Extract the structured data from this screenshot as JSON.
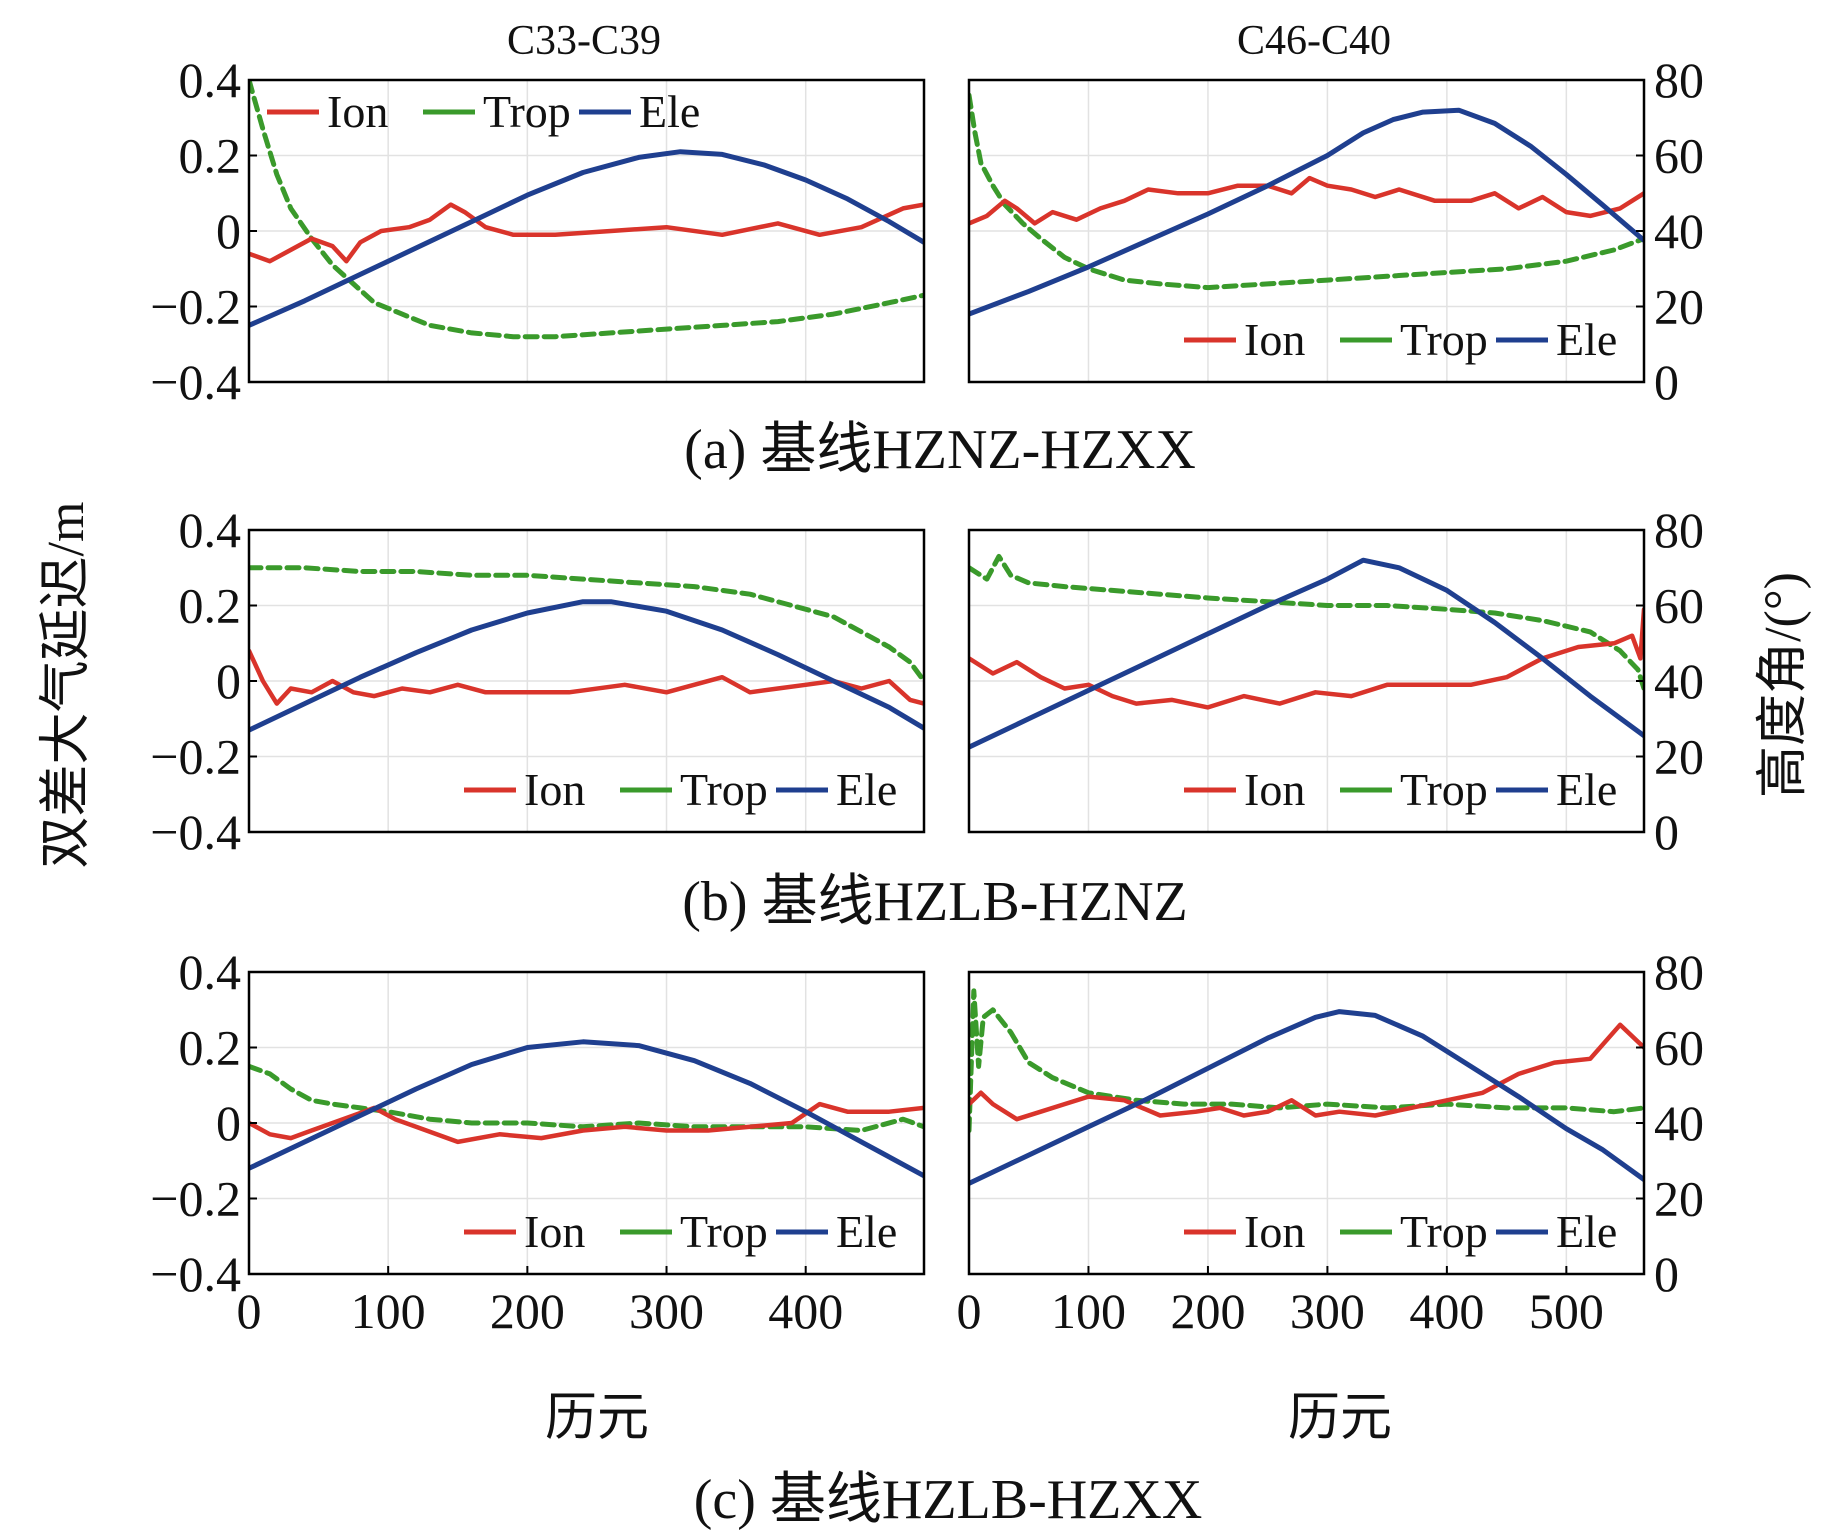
{
  "figure": {
    "column_titles": [
      "C33-C39",
      "C46-C40"
    ],
    "left_axis_label": "双差大气延迟/m",
    "right_axis_label": "高度角/(°)",
    "x_axis_label": "历元",
    "left_ticks": [
      "0.4",
      "0.2",
      "0",
      "−0.2",
      "−0.4"
    ],
    "right_ticks": [
      "80",
      "60",
      "40",
      "20",
      "0"
    ],
    "x_ticks_left": [
      "0",
      "100",
      "200",
      "300",
      "400"
    ],
    "x_ticks_right": [
      "0",
      "100",
      "200",
      "300",
      "400",
      "500"
    ],
    "captions": [
      "(a) 基线HZNZ-HZXX",
      "(b) 基线HZLB-HZNZ",
      "(c) 基线HZLB-HZXX"
    ],
    "legend": {
      "ion": "Ion",
      "trop": "Trop",
      "ele": "Ele"
    }
  },
  "colors": {
    "ion": "#d9342b",
    "trop": "#3a9a2b",
    "ele": "#1f3f8f"
  },
  "chart_data": [
    {
      "type": "line",
      "panel": "a-left",
      "title": "C33-C39",
      "caption": "(a) 基线HZNZ-HZXX",
      "xlabel": "历元",
      "ylabel": "双差大气延迟/m",
      "y2label": "高度角/(°)",
      "xlim": [
        0,
        485
      ],
      "ylim": [
        -0.4,
        0.4
      ],
      "y2lim": [
        0,
        80
      ],
      "legend_position": "top-left",
      "series": [
        {
          "name": "Ion",
          "axis": "left",
          "x": [
            0,
            15,
            30,
            45,
            60,
            70,
            80,
            95,
            115,
            130,
            145,
            155,
            170,
            190,
            220,
            260,
            300,
            340,
            380,
            410,
            440,
            470,
            485
          ],
          "y": [
            -0.06,
            -0.08,
            -0.05,
            -0.02,
            -0.04,
            -0.08,
            -0.03,
            0,
            0.01,
            0.03,
            0.07,
            0.05,
            0.01,
            -0.01,
            -0.01,
            0,
            0.01,
            -0.01,
            0.02,
            -0.01,
            0.01,
            0.06,
            0.07
          ]
        },
        {
          "name": "Trop",
          "axis": "left",
          "x": [
            0,
            10,
            20,
            30,
            45,
            60,
            75,
            90,
            110,
            130,
            160,
            190,
            220,
            260,
            300,
            340,
            380,
            420,
            460,
            485
          ],
          "y": [
            0.4,
            0.27,
            0.15,
            0.06,
            -0.02,
            -0.09,
            -0.14,
            -0.19,
            -0.22,
            -0.25,
            -0.27,
            -0.28,
            -0.28,
            -0.27,
            -0.26,
            -0.25,
            -0.24,
            -0.22,
            -0.19,
            -0.17
          ]
        },
        {
          "name": "Ele",
          "axis": "right",
          "x": [
            0,
            40,
            80,
            120,
            160,
            200,
            240,
            280,
            310,
            340,
            370,
            400,
            430,
            460,
            485
          ],
          "y": [
            15,
            21.5,
            28.5,
            35.5,
            42.5,
            49.5,
            55.5,
            59.5,
            61,
            60.3,
            57.5,
            53.5,
            48.5,
            42.5,
            37
          ]
        }
      ]
    },
    {
      "type": "line",
      "panel": "a-right",
      "title": "C46-C40",
      "caption": "(a) 基线HZNZ-HZXX",
      "xlabel": "历元",
      "ylabel": "双差大气延迟/m",
      "y2label": "高度角/(°)",
      "xlim": [
        0,
        565
      ],
      "ylim": [
        -0.4,
        0.4
      ],
      "y2lim": [
        0,
        80
      ],
      "legend_position": "bottom-right",
      "series": [
        {
          "name": "Ion",
          "axis": "left",
          "x": [
            0,
            15,
            30,
            40,
            55,
            70,
            90,
            110,
            130,
            150,
            175,
            200,
            225,
            250,
            270,
            285,
            300,
            320,
            340,
            360,
            390,
            420,
            440,
            460,
            480,
            500,
            520,
            545,
            565
          ],
          "y": [
            0.02,
            0.04,
            0.08,
            0.06,
            0.02,
            0.05,
            0.03,
            0.06,
            0.08,
            0.11,
            0.1,
            0.1,
            0.12,
            0.12,
            0.1,
            0.14,
            0.12,
            0.11,
            0.09,
            0.11,
            0.08,
            0.08,
            0.1,
            0.06,
            0.09,
            0.05,
            0.04,
            0.06,
            0.1
          ]
        },
        {
          "name": "Trop",
          "axis": "left",
          "x": [
            0,
            5,
            10,
            20,
            30,
            45,
            60,
            80,
            100,
            130,
            160,
            200,
            250,
            300,
            350,
            400,
            450,
            500,
            540,
            565
          ],
          "y": [
            0.36,
            0.26,
            0.18,
            0.12,
            0.07,
            0.02,
            -0.02,
            -0.07,
            -0.1,
            -0.13,
            -0.14,
            -0.15,
            -0.14,
            -0.13,
            -0.12,
            -0.11,
            -0.1,
            -0.08,
            -0.05,
            -0.02
          ]
        },
        {
          "name": "Ele",
          "axis": "right",
          "x": [
            0,
            50,
            100,
            150,
            200,
            250,
            300,
            330,
            355,
            380,
            410,
            440,
            470,
            500,
            530,
            565
          ],
          "y": [
            18,
            24,
            30.5,
            37.5,
            44.5,
            52,
            60,
            66,
            69.5,
            71.5,
            72,
            68.5,
            62.5,
            55,
            47,
            37.5
          ]
        }
      ]
    },
    {
      "type": "line",
      "panel": "b-left",
      "title": "C33-C39",
      "caption": "(b) 基线HZLB-HZNZ",
      "xlabel": "历元",
      "ylabel": "双差大气延迟/m",
      "y2label": "高度角/(°)",
      "xlim": [
        0,
        485
      ],
      "ylim": [
        -0.4,
        0.4
      ],
      "y2lim": [
        0,
        80
      ],
      "legend_position": "bottom-right",
      "series": [
        {
          "name": "Ion",
          "axis": "left",
          "x": [
            0,
            10,
            20,
            30,
            45,
            60,
            75,
            90,
            110,
            130,
            150,
            170,
            200,
            230,
            270,
            300,
            340,
            360,
            380,
            400,
            420,
            440,
            460,
            475,
            485
          ],
          "y": [
            0.08,
            0,
            -0.06,
            -0.02,
            -0.03,
            0,
            -0.03,
            -0.04,
            -0.02,
            -0.03,
            -0.01,
            -0.03,
            -0.03,
            -0.03,
            -0.01,
            -0.03,
            0.01,
            -0.03,
            -0.02,
            -0.01,
            0,
            -0.02,
            0,
            -0.05,
            -0.06
          ]
        },
        {
          "name": "Trop",
          "axis": "left",
          "x": [
            0,
            40,
            80,
            120,
            160,
            200,
            240,
            280,
            320,
            360,
            390,
            420,
            440,
            460,
            475,
            485
          ],
          "y": [
            0.3,
            0.3,
            0.29,
            0.29,
            0.28,
            0.28,
            0.27,
            0.26,
            0.25,
            0.23,
            0.2,
            0.17,
            0.13,
            0.09,
            0.05,
            0
          ]
        },
        {
          "name": "Ele",
          "axis": "right",
          "x": [
            0,
            40,
            80,
            120,
            160,
            200,
            240,
            260,
            300,
            340,
            380,
            420,
            460,
            485
          ],
          "y": [
            27,
            34,
            41,
            47.5,
            53.5,
            58,
            61,
            61,
            58.5,
            53.5,
            47,
            40,
            33,
            27.5
          ]
        }
      ]
    },
    {
      "type": "line",
      "panel": "b-right",
      "title": "C46-C40",
      "caption": "(b) 基线HZLB-HZNZ",
      "xlabel": "历元",
      "ylabel": "双差大气延迟/m",
      "y2label": "高度角/(°)",
      "xlim": [
        0,
        565
      ],
      "ylim": [
        -0.4,
        0.4
      ],
      "y2lim": [
        0,
        80
      ],
      "legend_position": "bottom-right",
      "series": [
        {
          "name": "Ion",
          "axis": "left",
          "x": [
            0,
            20,
            40,
            60,
            80,
            100,
            120,
            140,
            170,
            200,
            230,
            260,
            290,
            320,
            350,
            380,
            420,
            450,
            480,
            510,
            540,
            555,
            562,
            565
          ],
          "y": [
            0.06,
            0.02,
            0.05,
            0.01,
            -0.02,
            -0.01,
            -0.04,
            -0.06,
            -0.05,
            -0.07,
            -0.04,
            -0.06,
            -0.03,
            -0.04,
            -0.01,
            -0.01,
            -0.01,
            0.01,
            0.06,
            0.09,
            0.1,
            0.12,
            0.06,
            0.19
          ]
        },
        {
          "name": "Trop",
          "axis": "left",
          "x": [
            0,
            15,
            25,
            35,
            50,
            80,
            120,
            160,
            200,
            250,
            300,
            350,
            400,
            440,
            480,
            520,
            545,
            560,
            565
          ],
          "y": [
            0.3,
            0.27,
            0.33,
            0.28,
            0.26,
            0.25,
            0.24,
            0.23,
            0.22,
            0.21,
            0.2,
            0.2,
            0.19,
            0.18,
            0.16,
            0.13,
            0.08,
            0.03,
            -0.02
          ]
        },
        {
          "name": "Ele",
          "axis": "right",
          "x": [
            0,
            50,
            100,
            150,
            200,
            250,
            300,
            330,
            360,
            400,
            440,
            480,
            520,
            565
          ],
          "y": [
            22.5,
            30,
            37.5,
            45,
            52.5,
            60,
            67,
            72,
            70,
            64,
            55.5,
            46,
            36,
            25.5
          ]
        }
      ]
    },
    {
      "type": "line",
      "panel": "c-left",
      "title": "C33-C39",
      "caption": "(c) 基线HZLB-HZXX",
      "xlabel": "历元",
      "ylabel": "双差大气延迟/m",
      "y2label": "高度角/(°)",
      "xlim": [
        0,
        485
      ],
      "ylim": [
        -0.4,
        0.4
      ],
      "y2lim": [
        0,
        80
      ],
      "legend_position": "bottom-right",
      "series": [
        {
          "name": "Ion",
          "axis": "left",
          "x": [
            0,
            15,
            30,
            45,
            60,
            75,
            90,
            105,
            120,
            150,
            180,
            210,
            240,
            270,
            300,
            330,
            360,
            390,
            410,
            430,
            460,
            485
          ],
          "y": [
            0,
            -0.03,
            -0.04,
            -0.02,
            0,
            0.02,
            0.04,
            0.01,
            -0.01,
            -0.05,
            -0.03,
            -0.04,
            -0.02,
            -0.01,
            -0.02,
            -0.02,
            -0.01,
            0,
            0.05,
            0.03,
            0.03,
            0.04
          ]
        },
        {
          "name": "Trop",
          "axis": "left",
          "x": [
            0,
            15,
            30,
            45,
            60,
            80,
            100,
            130,
            160,
            200,
            240,
            280,
            320,
            360,
            400,
            440,
            470,
            485
          ],
          "y": [
            0.15,
            0.13,
            0.09,
            0.06,
            0.05,
            0.04,
            0.03,
            0.01,
            0,
            0,
            -0.01,
            0,
            -0.01,
            -0.01,
            -0.01,
            -0.02,
            0.01,
            -0.01
          ]
        },
        {
          "name": "Ele",
          "axis": "right",
          "x": [
            0,
            40,
            80,
            120,
            160,
            200,
            240,
            280,
            320,
            360,
            400,
            440,
            485
          ],
          "y": [
            28,
            35,
            42,
            49,
            55.5,
            60,
            61.5,
            60.5,
            56.5,
            50.5,
            43,
            35,
            26
          ]
        }
      ]
    },
    {
      "type": "line",
      "panel": "c-right",
      "title": "C46-C40",
      "caption": "(c) 基线HZLB-HZXX",
      "xlabel": "历元",
      "ylabel": "双差大气延迟/m",
      "y2label": "高度角/(°)",
      "xlim": [
        0,
        565
      ],
      "ylim": [
        -0.4,
        0.4
      ],
      "y2lim": [
        0,
        80
      ],
      "legend_position": "bottom-right",
      "series": [
        {
          "name": "Ion",
          "axis": "left",
          "x": [
            0,
            10,
            20,
            40,
            60,
            80,
            100,
            130,
            160,
            190,
            210,
            230,
            250,
            270,
            290,
            310,
            340,
            370,
            400,
            430,
            460,
            490,
            520,
            545,
            565
          ],
          "y": [
            0.05,
            0.08,
            0.05,
            0.01,
            0.03,
            0.05,
            0.07,
            0.06,
            0.02,
            0.03,
            0.04,
            0.02,
            0.03,
            0.06,
            0.02,
            0.03,
            0.02,
            0.04,
            0.06,
            0.08,
            0.13,
            0.16,
            0.17,
            0.26,
            0.2
          ]
        },
        {
          "name": "Trop",
          "axis": "left",
          "x": [
            0,
            4,
            8,
            12,
            20,
            35,
            50,
            70,
            100,
            140,
            180,
            220,
            260,
            300,
            350,
            400,
            450,
            500,
            540,
            565
          ],
          "y": [
            -0.02,
            0.35,
            0.15,
            0.28,
            0.3,
            0.24,
            0.16,
            0.12,
            0.08,
            0.06,
            0.05,
            0.05,
            0.04,
            0.05,
            0.04,
            0.05,
            0.04,
            0.04,
            0.03,
            0.04
          ]
        },
        {
          "name": "Ele",
          "axis": "right",
          "x": [
            0,
            50,
            100,
            150,
            200,
            250,
            290,
            310,
            340,
            380,
            420,
            460,
            500,
            530,
            565
          ],
          "y": [
            24,
            31.5,
            39,
            46.5,
            54.5,
            62.5,
            68,
            69.5,
            68.5,
            63,
            55,
            47,
            38.5,
            33,
            25
          ]
        }
      ]
    }
  ]
}
